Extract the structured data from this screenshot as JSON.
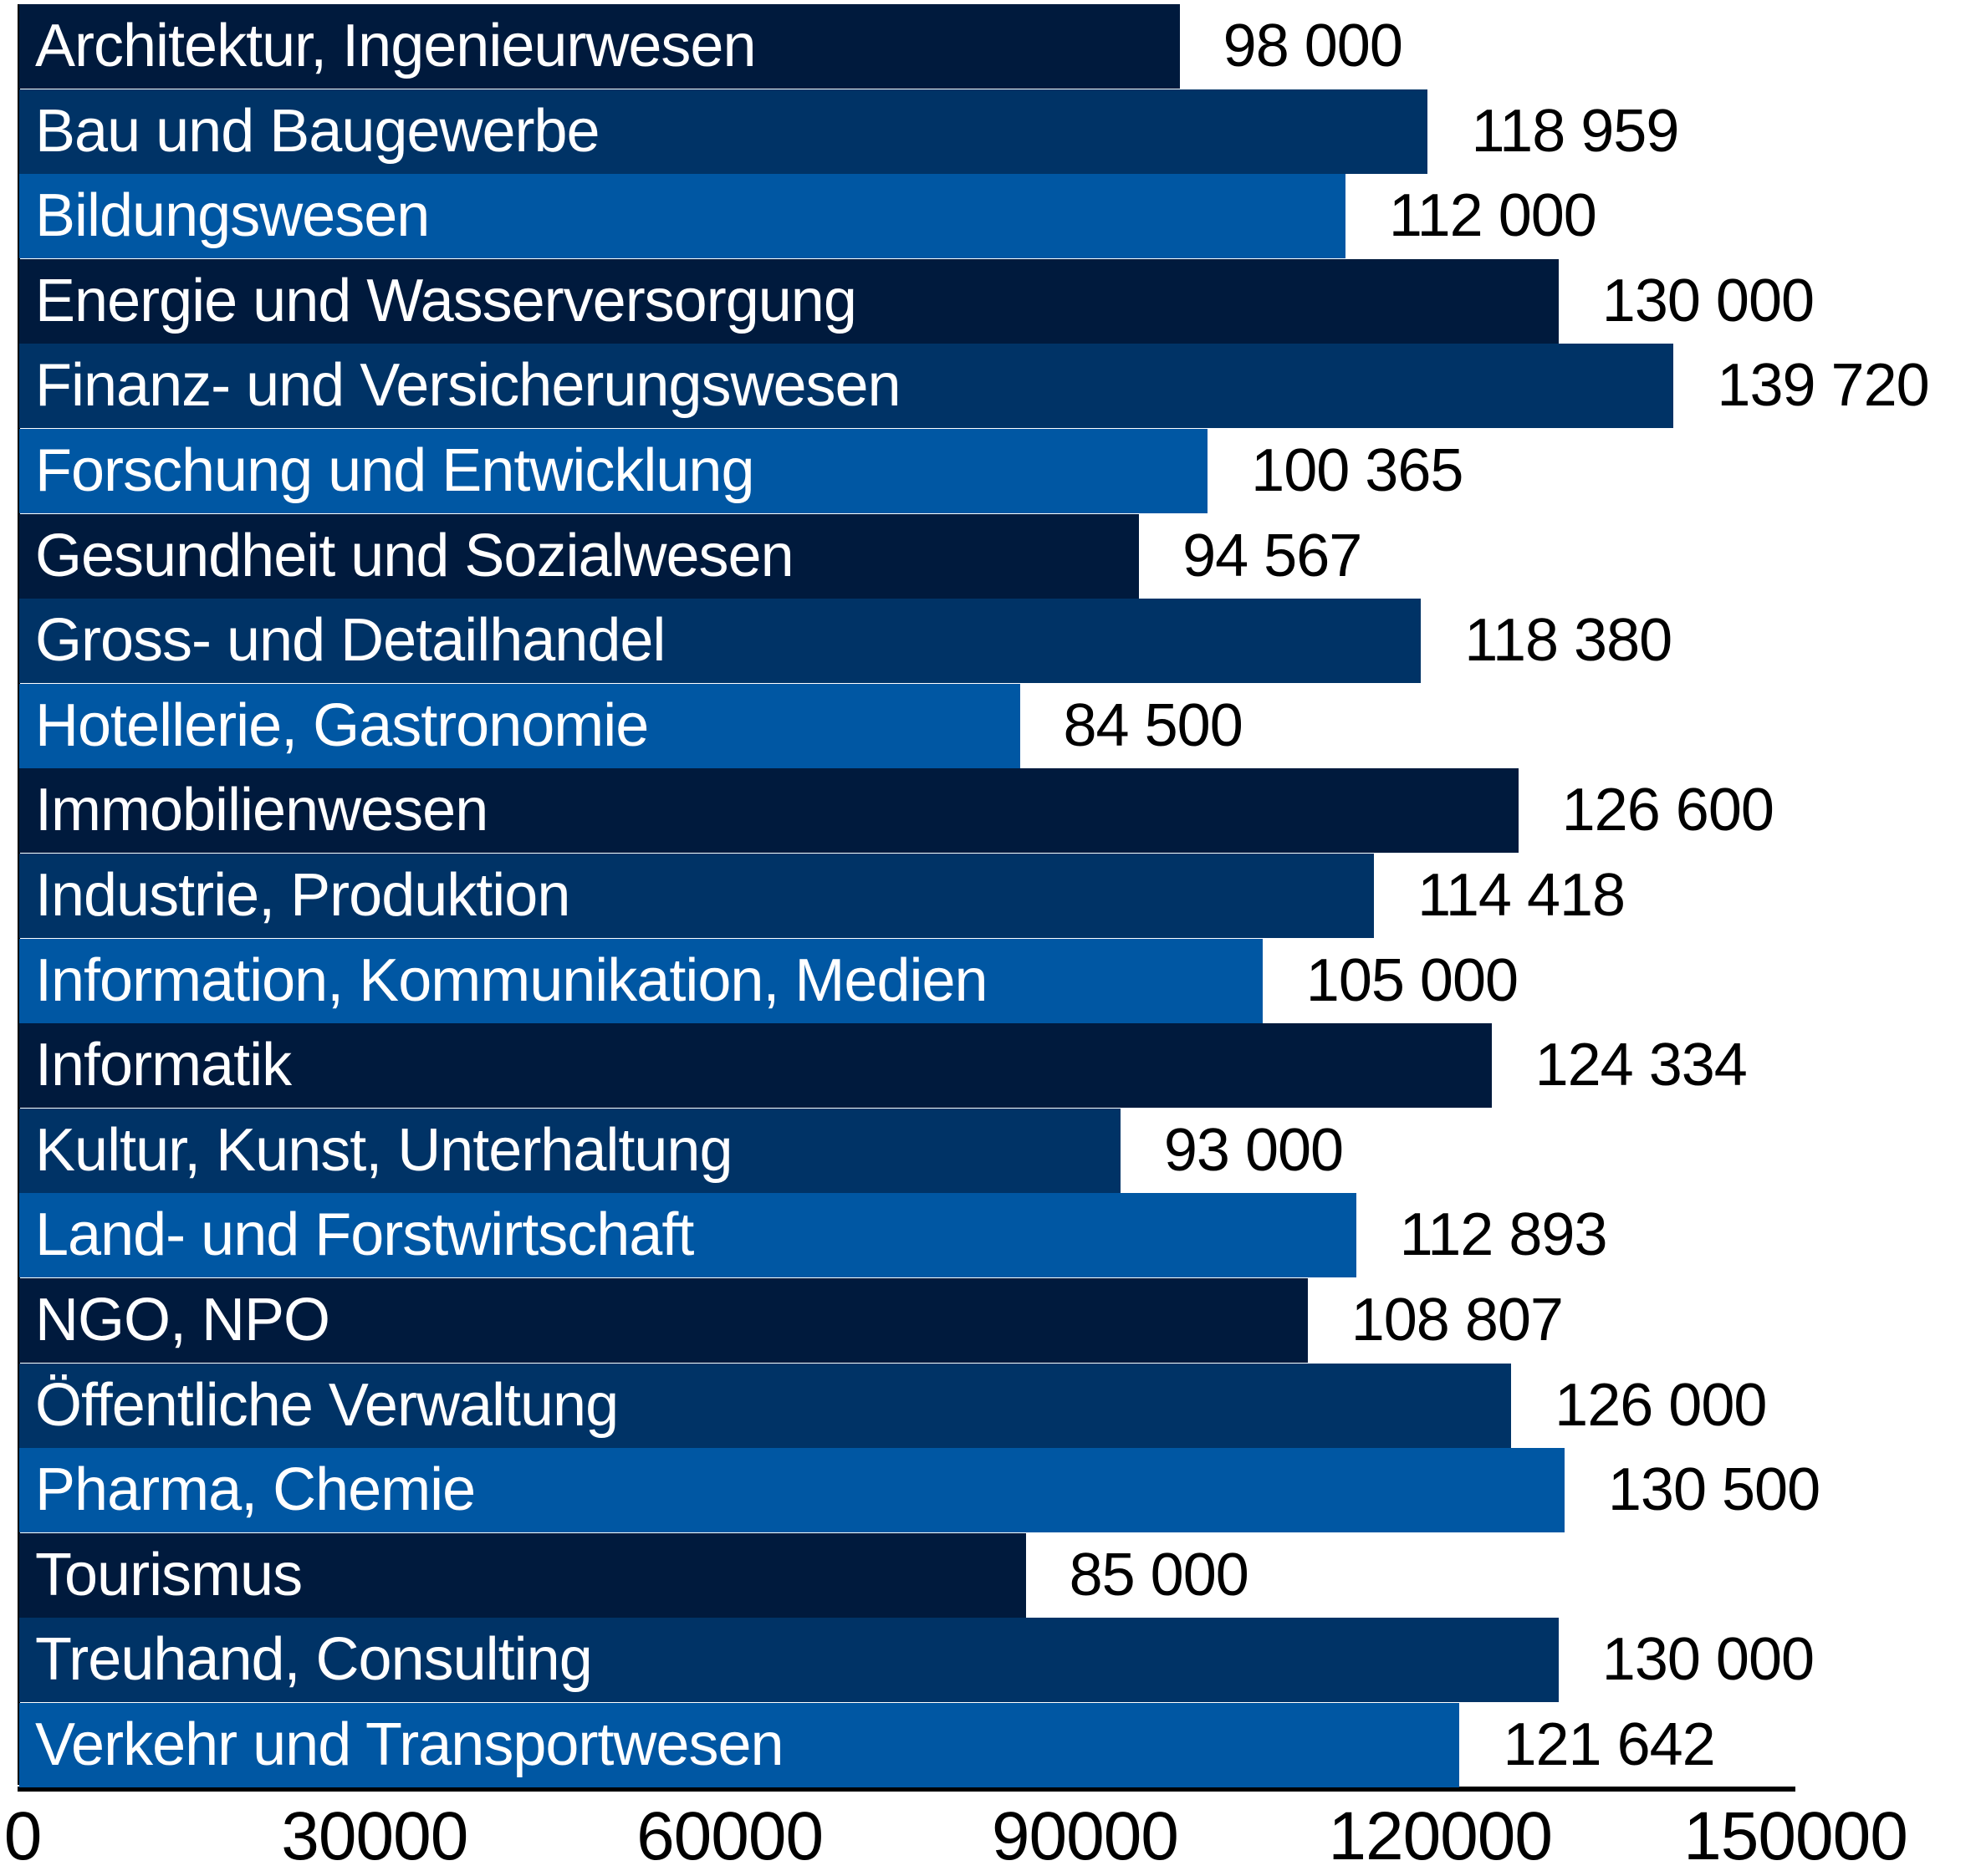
{
  "chart_data": {
    "type": "bar",
    "orientation": "horizontal",
    "title": "",
    "xlabel": "",
    "ylabel": "",
    "xlim": [
      0,
      150000
    ],
    "grid": false,
    "ticks": [
      "0",
      "30000",
      "60000",
      "90000",
      "120000",
      "150000"
    ],
    "tick_values": [
      0,
      30000,
      60000,
      90000,
      120000,
      150000
    ],
    "colors": [
      "#001a3d",
      "#003366",
      "#0057a3"
    ],
    "categories": [
      "Architektur, Ingenieurwesen",
      "Bau und Baugewerbe",
      "Bildungswesen",
      "Energie und Wasserversorgung",
      "Finanz- und Versicherungswesen",
      "Forschung und Entwicklung",
      "Gesundheit und Sozialwesen",
      "Gross- und Detailhandel",
      "Hotellerie, Gastronomie",
      "Immobilienwesen",
      "Industrie, Produktion",
      "Information, Kommunikation, Medien",
      "Informatik",
      "Kultur, Kunst, Unterhaltung",
      "Land- und Forstwirtschaft",
      "NGO, NPO",
      "Öffentliche Verwaltung",
      "Pharma, Chemie",
      "Tourismus",
      "Treuhand, Consulting",
      "Verkehr und Transportwesen"
    ],
    "values": [
      98000,
      118959,
      112000,
      130000,
      139720,
      100365,
      94567,
      118380,
      84500,
      126600,
      114418,
      105000,
      124334,
      93000,
      112893,
      108807,
      126000,
      130500,
      85000,
      130000,
      121642
    ],
    "value_labels": [
      "98 000",
      "118 959",
      "112 000",
      "130 000",
      "139 720",
      "100 365",
      "94 567",
      "118 380",
      "84 500",
      "126 600",
      "114 418",
      "105 000",
      "124 334",
      "93 000",
      "112 893",
      "108 807",
      "126 000",
      "130 500",
      "85 000",
      "130 000",
      "121 642"
    ]
  }
}
